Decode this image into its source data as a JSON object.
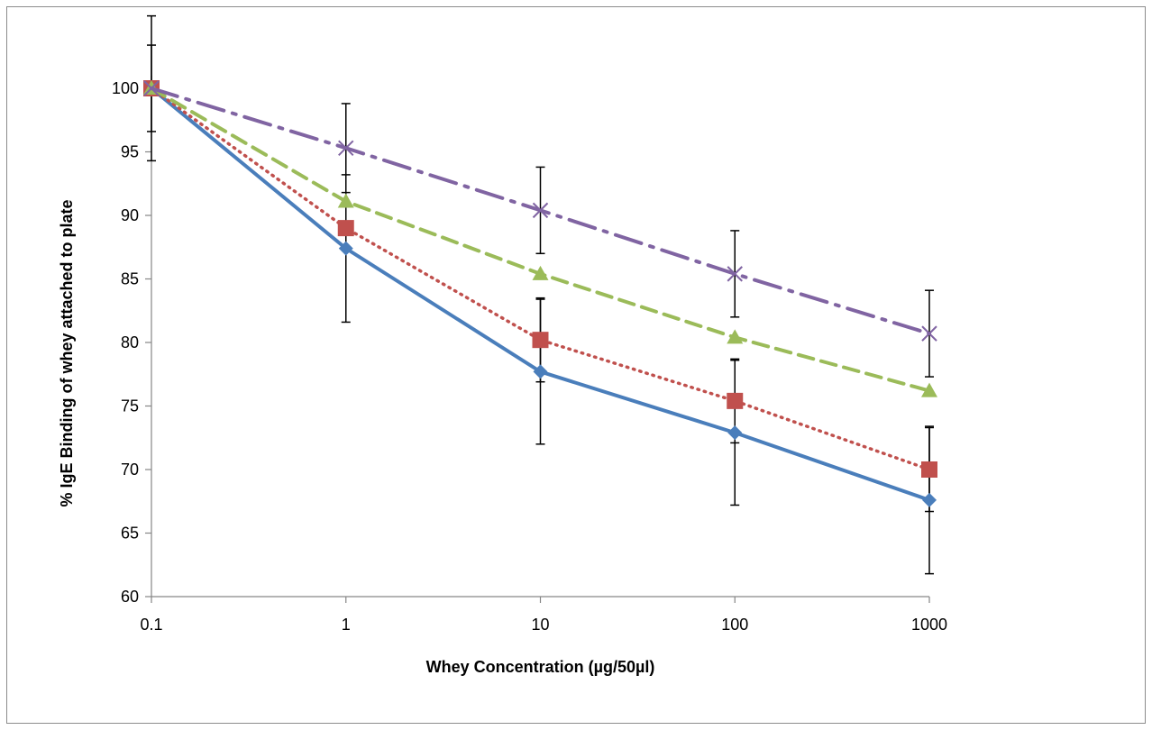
{
  "chart_data": {
    "type": "line",
    "title": "",
    "xlabel": "Whey Concentration (µg/50µl)",
    "ylabel": "% IgE Binding of whey attached to plate",
    "x_scale": "log",
    "x": [
      0.1,
      1,
      10,
      100,
      1000
    ],
    "x_tick_labels": [
      "0.1",
      "1",
      "10",
      "100",
      "1000"
    ],
    "ylim": [
      60,
      100
    ],
    "y_ticks": [
      60,
      65,
      70,
      75,
      80,
      85,
      90,
      95,
      100
    ],
    "grid": false,
    "legend": "none",
    "series": [
      {
        "color": "#4a7ebb",
        "line_style": "solid",
        "marker": "diamond",
        "values": [
          100,
          87.4,
          77.7,
          72.9,
          67.6
        ],
        "error": [
          5.7,
          5.8,
          5.7,
          5.7,
          5.8
        ]
      },
      {
        "color": "#c0504d",
        "line_style": "dotted",
        "marker": "square",
        "values": [
          100,
          89.0,
          80.2,
          75.4,
          70.0
        ],
        "error": [
          3.4,
          0,
          3.3,
          3.3,
          3.3
        ]
      },
      {
        "color": "#9bbb59",
        "line_style": "dashed",
        "marker": "triangle",
        "values": [
          100,
          91.1,
          85.4,
          80.4,
          76.2
        ],
        "error": [
          0,
          0,
          0,
          0,
          0
        ]
      },
      {
        "color": "#8064a2",
        "line_style": "dash-dot",
        "marker": "x",
        "values": [
          100,
          95.3,
          90.4,
          85.4,
          80.7
        ],
        "error": [
          0,
          3.5,
          3.4,
          3.4,
          3.4
        ]
      }
    ]
  }
}
